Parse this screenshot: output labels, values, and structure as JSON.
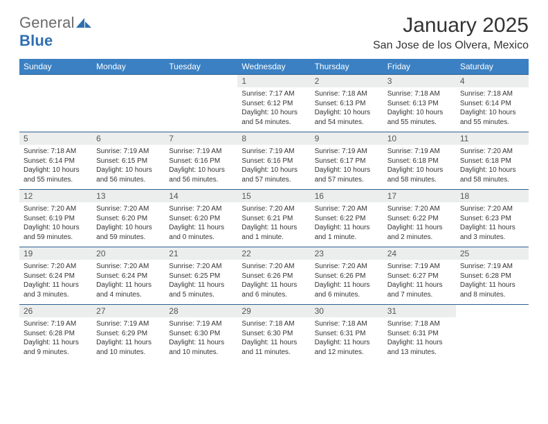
{
  "logo": {
    "general": "General",
    "blue": "Blue"
  },
  "title": "January 2025",
  "location": "San Jose de los Olvera, Mexico",
  "colors": {
    "header_bg": "#3a80c3",
    "header_text": "#ffffff",
    "row_rule": "#2b5f8f",
    "daynum_bg": "#eceded",
    "text": "#333333",
    "logo_gray": "#6a6a6a",
    "logo_blue": "#2f6fb0"
  },
  "weekdays": [
    "Sunday",
    "Monday",
    "Tuesday",
    "Wednesday",
    "Thursday",
    "Friday",
    "Saturday"
  ],
  "weeks": [
    [
      {
        "blank": true
      },
      {
        "blank": true
      },
      {
        "blank": true
      },
      {
        "n": "1",
        "sr": "7:17 AM",
        "ss": "6:12 PM",
        "dl": "10 hours and 54 minutes."
      },
      {
        "n": "2",
        "sr": "7:18 AM",
        "ss": "6:13 PM",
        "dl": "10 hours and 54 minutes."
      },
      {
        "n": "3",
        "sr": "7:18 AM",
        "ss": "6:13 PM",
        "dl": "10 hours and 55 minutes."
      },
      {
        "n": "4",
        "sr": "7:18 AM",
        "ss": "6:14 PM",
        "dl": "10 hours and 55 minutes."
      }
    ],
    [
      {
        "n": "5",
        "sr": "7:18 AM",
        "ss": "6:14 PM",
        "dl": "10 hours and 55 minutes."
      },
      {
        "n": "6",
        "sr": "7:19 AM",
        "ss": "6:15 PM",
        "dl": "10 hours and 56 minutes."
      },
      {
        "n": "7",
        "sr": "7:19 AM",
        "ss": "6:16 PM",
        "dl": "10 hours and 56 minutes."
      },
      {
        "n": "8",
        "sr": "7:19 AM",
        "ss": "6:16 PM",
        "dl": "10 hours and 57 minutes."
      },
      {
        "n": "9",
        "sr": "7:19 AM",
        "ss": "6:17 PM",
        "dl": "10 hours and 57 minutes."
      },
      {
        "n": "10",
        "sr": "7:19 AM",
        "ss": "6:18 PM",
        "dl": "10 hours and 58 minutes."
      },
      {
        "n": "11",
        "sr": "7:20 AM",
        "ss": "6:18 PM",
        "dl": "10 hours and 58 minutes."
      }
    ],
    [
      {
        "n": "12",
        "sr": "7:20 AM",
        "ss": "6:19 PM",
        "dl": "10 hours and 59 minutes."
      },
      {
        "n": "13",
        "sr": "7:20 AM",
        "ss": "6:20 PM",
        "dl": "10 hours and 59 minutes."
      },
      {
        "n": "14",
        "sr": "7:20 AM",
        "ss": "6:20 PM",
        "dl": "11 hours and 0 minutes."
      },
      {
        "n": "15",
        "sr": "7:20 AM",
        "ss": "6:21 PM",
        "dl": "11 hours and 1 minute."
      },
      {
        "n": "16",
        "sr": "7:20 AM",
        "ss": "6:22 PM",
        "dl": "11 hours and 1 minute."
      },
      {
        "n": "17",
        "sr": "7:20 AM",
        "ss": "6:22 PM",
        "dl": "11 hours and 2 minutes."
      },
      {
        "n": "18",
        "sr": "7:20 AM",
        "ss": "6:23 PM",
        "dl": "11 hours and 3 minutes."
      }
    ],
    [
      {
        "n": "19",
        "sr": "7:20 AM",
        "ss": "6:24 PM",
        "dl": "11 hours and 3 minutes."
      },
      {
        "n": "20",
        "sr": "7:20 AM",
        "ss": "6:24 PM",
        "dl": "11 hours and 4 minutes."
      },
      {
        "n": "21",
        "sr": "7:20 AM",
        "ss": "6:25 PM",
        "dl": "11 hours and 5 minutes."
      },
      {
        "n": "22",
        "sr": "7:20 AM",
        "ss": "6:26 PM",
        "dl": "11 hours and 6 minutes."
      },
      {
        "n": "23",
        "sr": "7:20 AM",
        "ss": "6:26 PM",
        "dl": "11 hours and 6 minutes."
      },
      {
        "n": "24",
        "sr": "7:19 AM",
        "ss": "6:27 PM",
        "dl": "11 hours and 7 minutes."
      },
      {
        "n": "25",
        "sr": "7:19 AM",
        "ss": "6:28 PM",
        "dl": "11 hours and 8 minutes."
      }
    ],
    [
      {
        "n": "26",
        "sr": "7:19 AM",
        "ss": "6:28 PM",
        "dl": "11 hours and 9 minutes."
      },
      {
        "n": "27",
        "sr": "7:19 AM",
        "ss": "6:29 PM",
        "dl": "11 hours and 10 minutes."
      },
      {
        "n": "28",
        "sr": "7:19 AM",
        "ss": "6:30 PM",
        "dl": "11 hours and 10 minutes."
      },
      {
        "n": "29",
        "sr": "7:18 AM",
        "ss": "6:30 PM",
        "dl": "11 hours and 11 minutes."
      },
      {
        "n": "30",
        "sr": "7:18 AM",
        "ss": "6:31 PM",
        "dl": "11 hours and 12 minutes."
      },
      {
        "n": "31",
        "sr": "7:18 AM",
        "ss": "6:31 PM",
        "dl": "11 hours and 13 minutes."
      },
      {
        "blank": true
      }
    ]
  ],
  "labels": {
    "sunrise": "Sunrise:",
    "sunset": "Sunset:",
    "daylight": "Daylight:"
  }
}
